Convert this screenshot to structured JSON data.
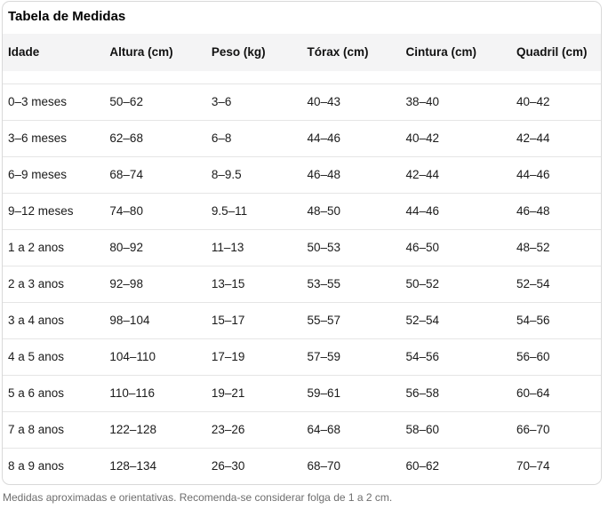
{
  "chart_data": {
    "type": "table",
    "title": "Tabela de Medidas",
    "columns": [
      "Idade",
      "Altura (cm)",
      "Peso (kg)",
      "Tórax (cm)",
      "Cintura (cm)",
      "Quadril (cm)"
    ],
    "rows": [
      [
        "0–3 meses",
        "50–62",
        "3–6",
        "40–43",
        "38–40",
        "40–42"
      ],
      [
        "3–6 meses",
        "62–68",
        "6–8",
        "44–46",
        "40–42",
        "42–44"
      ],
      [
        "6–9 meses",
        "68–74",
        "8–9.5",
        "46–48",
        "42–44",
        "44–46"
      ],
      [
        "9–12 meses",
        "74–80",
        "9.5–11",
        "48–50",
        "44–46",
        "46–48"
      ],
      [
        "1 a 2 anos",
        "80–92",
        "11–13",
        "50–53",
        "46–50",
        "48–52"
      ],
      [
        "2 a 3 anos",
        "92–98",
        "13–15",
        "53–55",
        "50–52",
        "52–54"
      ],
      [
        "3 a 4 anos",
        "98–104",
        "15–17",
        "55–57",
        "52–54",
        "54–56"
      ],
      [
        "4 a 5 anos",
        "104–110",
        "17–19",
        "57–59",
        "54–56",
        "56–60"
      ],
      [
        "5 a 6 anos",
        "110–116",
        "19–21",
        "59–61",
        "56–58",
        "60–64"
      ],
      [
        "7 a 8 anos",
        "122–128",
        "23–26",
        "64–68",
        "58–60",
        "66–70"
      ],
      [
        "8 a 9 anos",
        "128–134",
        "26–30",
        "68–70",
        "60–62",
        "70–74"
      ]
    ],
    "footnote": "Medidas aproximadas e orientativas. Recomenda-se considerar folga de 1 a 2 cm."
  },
  "colors": {
    "header_bg": "#f4f4f5",
    "card_border": "#d9d9d9",
    "row_divider": "#e5e5e5",
    "body_text": "#1a1a1a",
    "footnote_text": "#6e6e6e"
  }
}
